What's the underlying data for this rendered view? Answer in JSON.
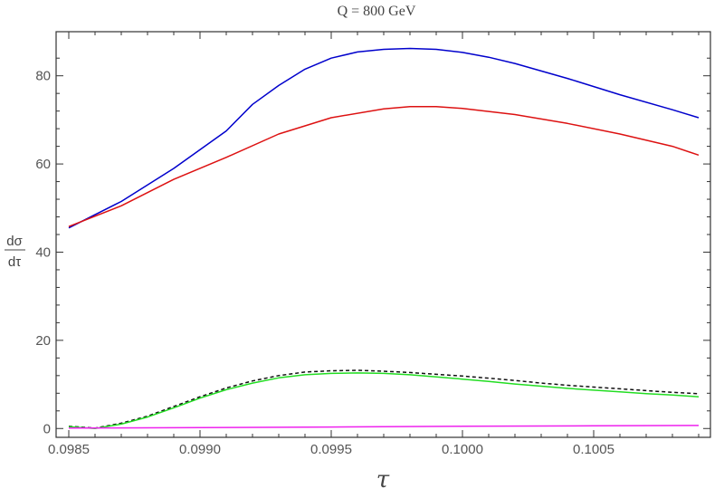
{
  "chart_data": {
    "type": "line",
    "title": "Q = 800 GeV",
    "xlabel": "τ",
    "ylabel_numerator": "dσ",
    "ylabel_denominator": "dτ",
    "xlim": [
      0.0985,
      0.1009
    ],
    "ylim": [
      -2,
      90
    ],
    "xticks": [
      0.0985,
      0.099,
      0.0995,
      0.1,
      0.1005
    ],
    "xtick_labels": [
      "0.0985",
      "0.0990",
      "0.0995",
      "0.1000",
      "0.1005"
    ],
    "yticks": [
      0,
      20,
      40,
      60,
      80
    ],
    "ytick_labels": [
      "0",
      "20",
      "40",
      "60",
      "80"
    ],
    "grid": false,
    "series": [
      {
        "color": "#0000cc",
        "dashed": false,
        "x": [
          0.0985,
          0.0987,
          0.0989,
          0.0991,
          0.0992,
          0.0993,
          0.0994,
          0.0995,
          0.0996,
          0.0997,
          0.0998,
          0.0999,
          0.1,
          0.1001,
          0.1002,
          0.1004,
          0.1006,
          0.1008,
          0.1009
        ],
        "y": [
          45.5,
          51.5,
          59.0,
          67.5,
          73.5,
          77.8,
          81.5,
          84.0,
          85.4,
          86.0,
          86.2,
          86.0,
          85.3,
          84.2,
          82.8,
          79.4,
          75.7,
          72.3,
          70.5
        ]
      },
      {
        "color": "#dd1111",
        "dashed": false,
        "x": [
          0.0985,
          0.0987,
          0.0989,
          0.0991,
          0.0993,
          0.0995,
          0.0997,
          0.0998,
          0.0999,
          0.1,
          0.1002,
          0.1004,
          0.1006,
          0.1008,
          0.1009
        ],
        "y": [
          45.8,
          50.5,
          56.5,
          61.5,
          66.8,
          70.5,
          72.5,
          73.0,
          73.0,
          72.6,
          71.2,
          69.2,
          66.8,
          64.0,
          62.0
        ]
      },
      {
        "color": "#111111",
        "dashed": true,
        "x": [
          0.0985,
          0.0986,
          0.0987,
          0.0988,
          0.0989,
          0.099,
          0.0991,
          0.0992,
          0.0993,
          0.0994,
          0.0995,
          0.0996,
          0.0997,
          0.0998,
          0.0999,
          0.1,
          0.1001,
          0.1002,
          0.1003,
          0.1004,
          0.1005,
          0.1006,
          0.1007,
          0.1008,
          0.1009
        ],
        "y": [
          0.5,
          0.1,
          1.2,
          2.8,
          5.0,
          7.2,
          9.2,
          10.8,
          12.0,
          12.8,
          13.1,
          13.2,
          13.0,
          12.7,
          12.3,
          11.9,
          11.4,
          10.9,
          10.3,
          9.8,
          9.4,
          9.0,
          8.6,
          8.2,
          7.9
        ]
      },
      {
        "color": "#22dd22",
        "dashed": false,
        "x": [
          0.0985,
          0.0986,
          0.0987,
          0.0988,
          0.0989,
          0.099,
          0.0991,
          0.0992,
          0.0993,
          0.0994,
          0.0995,
          0.0996,
          0.0997,
          0.0998,
          0.0999,
          0.1,
          0.1001,
          0.1002,
          0.1003,
          0.1004,
          0.1005,
          0.1006,
          0.1007,
          0.1008,
          0.1009
        ],
        "y": [
          0.4,
          0.0,
          1.0,
          2.6,
          4.7,
          6.9,
          8.8,
          10.3,
          11.5,
          12.2,
          12.5,
          12.6,
          12.5,
          12.2,
          11.7,
          11.2,
          10.7,
          10.1,
          9.6,
          9.1,
          8.7,
          8.3,
          7.9,
          7.6,
          7.2
        ]
      },
      {
        "color": "#ee22ee",
        "dashed": false,
        "x": [
          0.0985,
          0.099,
          0.0995,
          0.1,
          0.1005,
          0.1009
        ],
        "y": [
          0.1,
          0.2,
          0.35,
          0.5,
          0.6,
          0.7
        ]
      }
    ]
  }
}
